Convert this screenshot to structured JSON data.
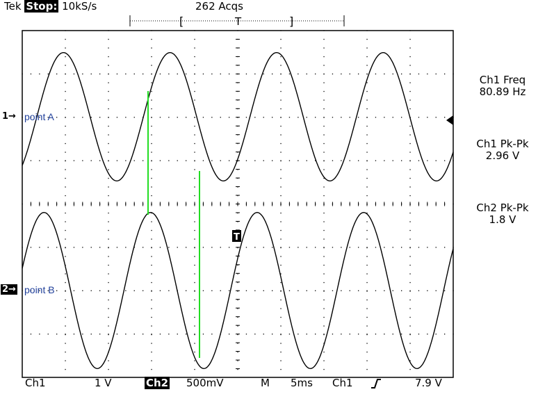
{
  "header": {
    "brand": "Tek",
    "run_state": "Stop:",
    "sample_rate": "10kS/s",
    "acquisitions": "262 Acqs",
    "trigger_bracket_left": "[",
    "trigger_position_marker": "T",
    "trigger_bracket_right": "]"
  },
  "channels": {
    "ch1_marker": "1→",
    "ch1_label": "point A",
    "ch2_marker": "2→",
    "ch2_label": "point B",
    "trigger_level_marker": "T"
  },
  "measurements": [
    {
      "title": "Ch1 Freq",
      "value": "80.89 Hz"
    },
    {
      "title": "Ch1 Pk-Pk",
      "value": "2.96 V"
    },
    {
      "title": "Ch2 Pk-Pk",
      "value": "1.8 V"
    }
  ],
  "footer": {
    "ch1": "Ch1",
    "ch1_scale": "1 V",
    "ch2": "Ch2",
    "ch2_scale": "500mV",
    "mode": "M",
    "time_scale": "5ms",
    "trigger_source": "Ch1",
    "trigger_slope_icon": "rising-edge-icon",
    "trigger_level": "7.9 V"
  },
  "colors": {
    "trace": "#000000",
    "grid": "#000000",
    "cursor": "#22dd22",
    "label": "#1f3f9a"
  },
  "chart_data": {
    "type": "line",
    "x_divisions": 10,
    "y_divisions": 8,
    "time_per_div_ms": 5,
    "series": [
      {
        "name": "point A",
        "waveform": "sine",
        "frequency_hz": 80.89,
        "pk_pk_v": 2.96,
        "volts_per_div": 1
      },
      {
        "name": "point B",
        "waveform": "sine",
        "frequency_hz": 80.89,
        "pk_pk_v": 1.8,
        "volts_per_div": 0.5
      }
    ]
  }
}
